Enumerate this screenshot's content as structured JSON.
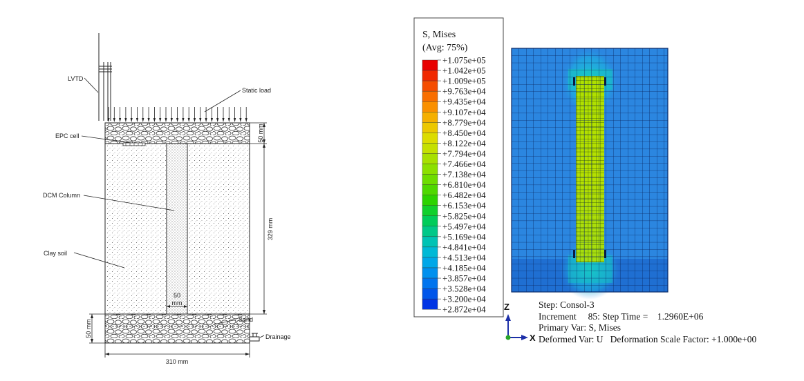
{
  "schematic": {
    "labels": {
      "lvtd": "LVTD",
      "static_load": "Static load",
      "epc_cell": "EPC cell",
      "dcm_column": "DCM Column",
      "clay_soil": "Clay soil",
      "sand": "Sand",
      "drainage": "Drainage"
    },
    "dims": {
      "top_layer": "50 mm",
      "clay_height": "329 mm",
      "column_width_value": "50",
      "column_width_unit": "mm",
      "bottom_layer": "50 mm",
      "total_width": "310 mm"
    }
  },
  "legend": {
    "title_line1": "S, Mises",
    "title_line2": "(Avg: 75%)",
    "values": [
      "+1.075e+05",
      "+1.042e+05",
      "+1.009e+05",
      "+9.763e+04",
      "+9.435e+04",
      "+9.107e+04",
      "+8.779e+04",
      "+8.450e+04",
      "+8.122e+04",
      "+7.794e+04",
      "+7.466e+04",
      "+7.138e+04",
      "+6.810e+04",
      "+6.482e+04",
      "+6.153e+04",
      "+5.825e+04",
      "+5.497e+04",
      "+5.169e+04",
      "+4.841e+04",
      "+4.513e+04",
      "+4.185e+04",
      "+3.857e+04",
      "+3.528e+04",
      "+3.200e+04",
      "+2.872e+04"
    ],
    "colors": [
      "#e80000",
      "#f02800",
      "#f54d00",
      "#f86e00",
      "#fa9000",
      "#f5b000",
      "#ecc800",
      "#dcdc00",
      "#c5e000",
      "#a8e000",
      "#8ce000",
      "#6edd00",
      "#4fd800",
      "#2cd300",
      "#10d02c",
      "#00cc5a",
      "#00c888",
      "#00c3b4",
      "#00b9d6",
      "#00a7e8",
      "#0090ee",
      "#0074ee",
      "#0056ea",
      "#0034e4"
    ]
  },
  "model": {
    "step_line": "Step: Consol-3",
    "increment_line": "Increment     85: Step Time =    1.2960E+06",
    "primary_line": "Primary Var: S, Mises",
    "deformed_line": "Deformed Var: U   Deformation Scale Factor: +1.000e+00",
    "axis_z": "Z",
    "axis_x": "X"
  }
}
